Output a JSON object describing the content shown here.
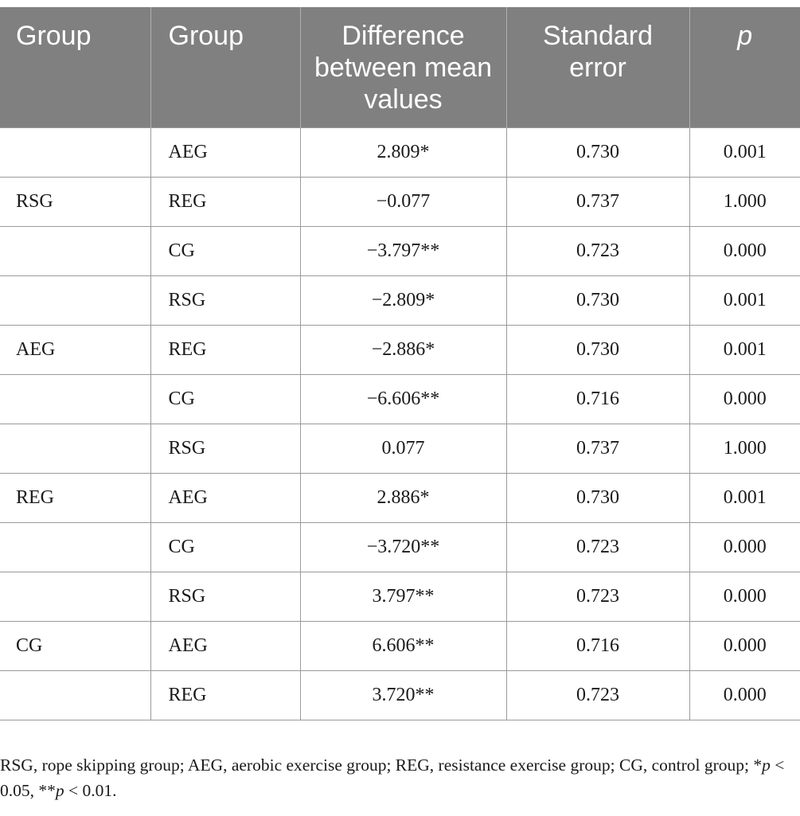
{
  "table": {
    "headers": [
      "Group",
      "Group",
      "Difference between mean values",
      "Standard error",
      "p"
    ],
    "rows": [
      {
        "group1": "",
        "group2": "AEG",
        "diff": "2.809*",
        "se": "0.730",
        "p": "0.001"
      },
      {
        "group1": "RSG",
        "group2": "REG",
        "diff": "−0.077",
        "se": "0.737",
        "p": "1.000"
      },
      {
        "group1": "",
        "group2": "CG",
        "diff": "−3.797**",
        "se": "0.723",
        "p": "0.000"
      },
      {
        "group1": "",
        "group2": "RSG",
        "diff": "−2.809*",
        "se": "0.730",
        "p": "0.001"
      },
      {
        "group1": "AEG",
        "group2": "REG",
        "diff": "−2.886*",
        "se": "0.730",
        "p": "0.001"
      },
      {
        "group1": "",
        "group2": "CG",
        "diff": "−6.606**",
        "se": "0.716",
        "p": "0.000"
      },
      {
        "group1": "",
        "group2": "RSG",
        "diff": "0.077",
        "se": "0.737",
        "p": "1.000"
      },
      {
        "group1": "REG",
        "group2": "AEG",
        "diff": "2.886*",
        "se": "0.730",
        "p": "0.001"
      },
      {
        "group1": "",
        "group2": "CG",
        "diff": "−3.720**",
        "se": "0.723",
        "p": "0.000"
      },
      {
        "group1": "",
        "group2": "RSG",
        "diff": "3.797**",
        "se": "0.723",
        "p": "0.000"
      },
      {
        "group1": "CG",
        "group2": "AEG",
        "diff": "6.606**",
        "se": "0.716",
        "p": "0.000"
      },
      {
        "group1": "",
        "group2": "REG",
        "diff": "3.720**",
        "se": "0.723",
        "p": "0.000"
      }
    ]
  },
  "footnote": {
    "abbreviations": "RSG, rope skipping group; AEG, aerobic exercise group; REG, resistance exercise group; CG, control group; ",
    "sig1_mark": "*",
    "sig1_p": "p",
    "sig1_rest": " < 0.05, ",
    "sig2_mark": "**",
    "sig2_p": "p",
    "sig2_rest": " < 0.01."
  }
}
